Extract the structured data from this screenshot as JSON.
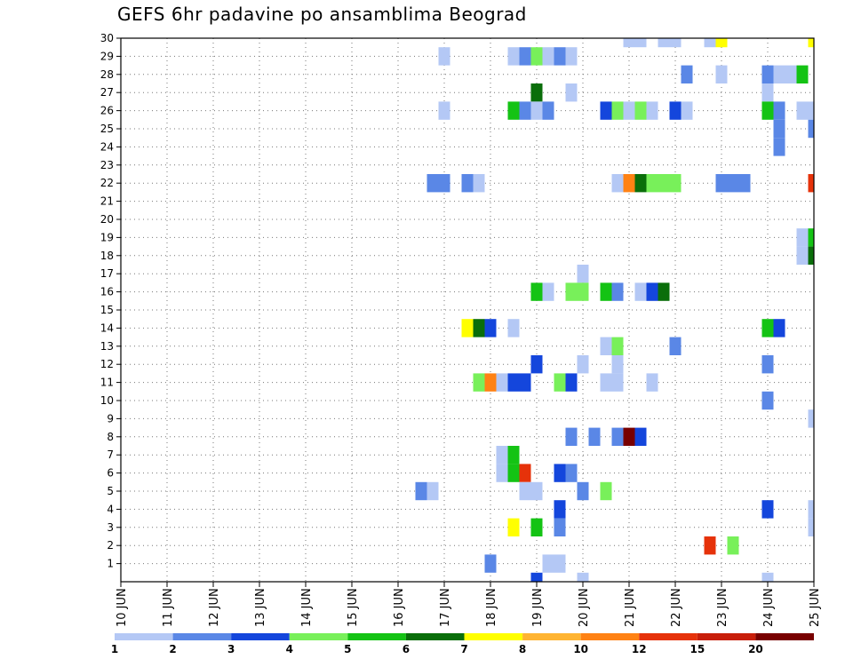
{
  "chart_data": {
    "type": "heatmap",
    "title": "GEFS 6hr padavine po ansamblima Beograd",
    "y_ticks": [
      "1",
      "2",
      "3",
      "4",
      "5",
      "6",
      "7",
      "8",
      "9",
      "10",
      "11",
      "12",
      "13",
      "14",
      "15",
      "16",
      "17",
      "18",
      "19",
      "20",
      "21",
      "22",
      "23",
      "24",
      "25",
      "26",
      "27",
      "28",
      "29",
      "30"
    ],
    "x_ticks": [
      "10 JUN",
      "11 JUN",
      "12 JUN",
      "13 JUN",
      "14 JUN",
      "15 JUN",
      "16 JUN",
      "17 JUN",
      "18 JUN",
      "19 JUN",
      "20 JUN",
      "21 JUN",
      "22 JUN",
      "23 JUN",
      "24 JUN",
      "25 JUN"
    ],
    "grid": true,
    "colorbar": {
      "labels": [
        "1",
        "2",
        "3",
        "4",
        "5",
        "6",
        "7",
        "8",
        "10",
        "12",
        "15",
        "20"
      ],
      "colors": [
        "#b4c8f5",
        "#5a87e6",
        "#1446dc",
        "#78f05a",
        "#14c314",
        "#0a6e0a",
        "#ffff00",
        "#ffb432",
        "#ff8214",
        "#e6320a",
        "#c81e0a",
        "#780000"
      ]
    },
    "cells": [
      {
        "member": 30,
        "day": 21.0,
        "level": 0
      },
      {
        "member": 30,
        "day": 21.25,
        "level": 0
      },
      {
        "member": 30,
        "day": 21.75,
        "level": 0
      },
      {
        "member": 30,
        "day": 22.0,
        "level": 0
      },
      {
        "member": 30,
        "day": 22.75,
        "level": 0
      },
      {
        "member": 30,
        "day": 23.0,
        "level": 6
      },
      {
        "member": 30,
        "day": 25.0,
        "level": 6
      },
      {
        "member": 29,
        "day": 17.0,
        "level": 0
      },
      {
        "member": 29,
        "day": 18.5,
        "level": 0
      },
      {
        "member": 29,
        "day": 18.75,
        "level": 1
      },
      {
        "member": 29,
        "day": 19.0,
        "level": 3
      },
      {
        "member": 29,
        "day": 19.25,
        "level": 0
      },
      {
        "member": 29,
        "day": 19.5,
        "level": 1
      },
      {
        "member": 29,
        "day": 19.75,
        "level": 0
      },
      {
        "member": 28,
        "day": 22.25,
        "level": 1
      },
      {
        "member": 28,
        "day": 23.0,
        "level": 0
      },
      {
        "member": 28,
        "day": 24.0,
        "level": 1
      },
      {
        "member": 28,
        "day": 24.25,
        "level": 0
      },
      {
        "member": 28,
        "day": 24.5,
        "level": 0
      },
      {
        "member": 28,
        "day": 24.75,
        "level": 4
      },
      {
        "member": 27,
        "day": 19.0,
        "level": 5
      },
      {
        "member": 27,
        "day": 19.75,
        "level": 0
      },
      {
        "member": 27,
        "day": 24.0,
        "level": 0
      },
      {
        "member": 26,
        "day": 17.0,
        "level": 0
      },
      {
        "member": 26,
        "day": 18.5,
        "level": 4
      },
      {
        "member": 26,
        "day": 18.75,
        "level": 1
      },
      {
        "member": 26,
        "day": 19.0,
        "level": 0
      },
      {
        "member": 26,
        "day": 19.25,
        "level": 1
      },
      {
        "member": 26,
        "day": 20.5,
        "level": 2
      },
      {
        "member": 26,
        "day": 20.75,
        "level": 3
      },
      {
        "member": 26,
        "day": 21.0,
        "level": 0
      },
      {
        "member": 26,
        "day": 21.25,
        "level": 3
      },
      {
        "member": 26,
        "day": 21.5,
        "level": 0
      },
      {
        "member": 26,
        "day": 22.0,
        "level": 2
      },
      {
        "member": 26,
        "day": 22.25,
        "level": 0
      },
      {
        "member": 26,
        "day": 24.0,
        "level": 4
      },
      {
        "member": 26,
        "day": 24.25,
        "level": 1
      },
      {
        "member": 26,
        "day": 24.75,
        "level": 0
      },
      {
        "member": 26,
        "day": 25.0,
        "level": 0
      },
      {
        "member": 25,
        "day": 24.25,
        "level": 1
      },
      {
        "member": 25,
        "day": 25.0,
        "level": 1
      },
      {
        "member": 24,
        "day": 24.25,
        "level": 1
      },
      {
        "member": 22,
        "day": 16.75,
        "level": 1
      },
      {
        "member": 22,
        "day": 17.0,
        "level": 1
      },
      {
        "member": 22,
        "day": 17.5,
        "level": 1
      },
      {
        "member": 22,
        "day": 17.75,
        "level": 0
      },
      {
        "member": 22,
        "day": 20.75,
        "level": 0
      },
      {
        "member": 22,
        "day": 21.0,
        "level": 8
      },
      {
        "member": 22,
        "day": 21.25,
        "level": 5
      },
      {
        "member": 22,
        "day": 21.5,
        "level": 3
      },
      {
        "member": 22,
        "day": 21.75,
        "level": 3
      },
      {
        "member": 22,
        "day": 22.0,
        "level": 3
      },
      {
        "member": 22,
        "day": 23.0,
        "level": 1
      },
      {
        "member": 22,
        "day": 23.25,
        "level": 1
      },
      {
        "member": 22,
        "day": 23.5,
        "level": 1
      },
      {
        "member": 22,
        "day": 25.0,
        "level": 9
      },
      {
        "member": 19,
        "day": 24.75,
        "level": 0
      },
      {
        "member": 19,
        "day": 25.0,
        "level": 4
      },
      {
        "member": 18,
        "day": 24.75,
        "level": 0
      },
      {
        "member": 18,
        "day": 25.0,
        "level": 5
      },
      {
        "member": 17,
        "day": 20.0,
        "level": 0
      },
      {
        "member": 16,
        "day": 19.0,
        "level": 4
      },
      {
        "member": 16,
        "day": 19.25,
        "level": 0
      },
      {
        "member": 16,
        "day": 19.75,
        "level": 3
      },
      {
        "member": 16,
        "day": 20.0,
        "level": 3
      },
      {
        "member": 16,
        "day": 20.5,
        "level": 4
      },
      {
        "member": 16,
        "day": 20.75,
        "level": 1
      },
      {
        "member": 16,
        "day": 21.25,
        "level": 0
      },
      {
        "member": 16,
        "day": 21.5,
        "level": 2
      },
      {
        "member": 16,
        "day": 21.75,
        "level": 5
      },
      {
        "member": 14,
        "day": 17.5,
        "level": 6
      },
      {
        "member": 14,
        "day": 17.75,
        "level": 5
      },
      {
        "member": 14,
        "day": 18.0,
        "level": 2
      },
      {
        "member": 14,
        "day": 18.5,
        "level": 0
      },
      {
        "member": 14,
        "day": 24.0,
        "level": 4
      },
      {
        "member": 14,
        "day": 24.25,
        "level": 2
      },
      {
        "member": 13,
        "day": 20.5,
        "level": 0
      },
      {
        "member": 13,
        "day": 20.75,
        "level": 3
      },
      {
        "member": 13,
        "day": 22.0,
        "level": 1
      },
      {
        "member": 12,
        "day": 19.0,
        "level": 2
      },
      {
        "member": 12,
        "day": 20.0,
        "level": 0
      },
      {
        "member": 12,
        "day": 20.75,
        "level": 0
      },
      {
        "member": 12,
        "day": 24.0,
        "level": 1
      },
      {
        "member": 11,
        "day": 17.75,
        "level": 3
      },
      {
        "member": 11,
        "day": 18.0,
        "level": 8
      },
      {
        "member": 11,
        "day": 18.25,
        "level": 0
      },
      {
        "member": 11,
        "day": 18.5,
        "level": 2
      },
      {
        "member": 11,
        "day": 18.75,
        "level": 2
      },
      {
        "member": 11,
        "day": 19.5,
        "level": 3
      },
      {
        "member": 11,
        "day": 19.75,
        "level": 2
      },
      {
        "member": 11,
        "day": 20.5,
        "level": 0
      },
      {
        "member": 11,
        "day": 20.75,
        "level": 0
      },
      {
        "member": 11,
        "day": 21.5,
        "level": 0
      },
      {
        "member": 10,
        "day": 24.0,
        "level": 1
      },
      {
        "member": 9,
        "day": 25.0,
        "level": 0
      },
      {
        "member": 8,
        "day": 19.75,
        "level": 1
      },
      {
        "member": 8,
        "day": 20.25,
        "level": 1
      },
      {
        "member": 8,
        "day": 20.75,
        "level": 1
      },
      {
        "member": 8,
        "day": 21.0,
        "level": 11
      },
      {
        "member": 8,
        "day": 21.25,
        "level": 2
      },
      {
        "member": 7,
        "day": 18.25,
        "level": 0
      },
      {
        "member": 7,
        "day": 18.5,
        "level": 4
      },
      {
        "member": 6,
        "day": 18.25,
        "level": 0
      },
      {
        "member": 6,
        "day": 18.5,
        "level": 4
      },
      {
        "member": 6,
        "day": 18.75,
        "level": 9
      },
      {
        "member": 6,
        "day": 19.5,
        "level": 2
      },
      {
        "member": 6,
        "day": 19.75,
        "level": 1
      },
      {
        "member": 5,
        "day": 16.5,
        "level": 1
      },
      {
        "member": 5,
        "day": 16.75,
        "level": 0
      },
      {
        "member": 5,
        "day": 18.75,
        "level": 0
      },
      {
        "member": 5,
        "day": 19.0,
        "level": 0
      },
      {
        "member": 5,
        "day": 20.0,
        "level": 1
      },
      {
        "member": 5,
        "day": 20.5,
        "level": 3
      },
      {
        "member": 4,
        "day": 19.5,
        "level": 2
      },
      {
        "member": 4,
        "day": 24.0,
        "level": 2
      },
      {
        "member": 4,
        "day": 25.0,
        "level": 0
      },
      {
        "member": 3,
        "day": 18.5,
        "level": 6
      },
      {
        "member": 3,
        "day": 19.0,
        "level": 4
      },
      {
        "member": 3,
        "day": 19.5,
        "level": 1
      },
      {
        "member": 3,
        "day": 25.0,
        "level": 0
      },
      {
        "member": 2,
        "day": 22.75,
        "level": 9
      },
      {
        "member": 2,
        "day": 23.25,
        "level": 3
      },
      {
        "member": 1,
        "day": 18.0,
        "level": 1
      },
      {
        "member": 1,
        "day": 19.25,
        "level": 0
      },
      {
        "member": 1,
        "day": 19.5,
        "level": 0
      },
      {
        "member": 0,
        "day": 19.0,
        "level": 2
      },
      {
        "member": 0,
        "day": 20.0,
        "level": 0
      },
      {
        "member": 0,
        "day": 24.0,
        "level": 0
      }
    ]
  }
}
